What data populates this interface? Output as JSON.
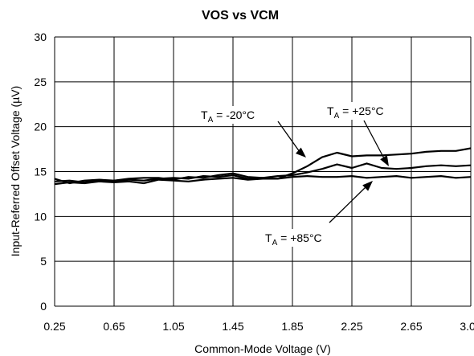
{
  "chart_data": {
    "type": "line",
    "title": "VOS vs VCM",
    "xlabel": "Common-Mode Voltage (V)",
    "ylabel": "Input-Referred Offset  Voltage (µV)",
    "xlim": [
      0.25,
      3.05
    ],
    "ylim": [
      0,
      30
    ],
    "x_ticks": [
      "0.25",
      "0.65",
      "1.05",
      "1.45",
      "1.85",
      "2.25",
      "2.65",
      "3.05"
    ],
    "y_ticks": [
      "0",
      "5",
      "10",
      "15",
      "20",
      "25",
      "30"
    ],
    "grid": true,
    "series": [
      {
        "name": "T_A = -20°C",
        "label_main": "T",
        "label_sub": "A",
        "label_rest": " = -20°C",
        "x": [
          0.25,
          0.35,
          0.45,
          0.55,
          0.65,
          0.75,
          0.85,
          0.95,
          1.05,
          1.15,
          1.25,
          1.35,
          1.45,
          1.55,
          1.65,
          1.75,
          1.85,
          1.95,
          2.05,
          2.15,
          2.25,
          2.35,
          2.45,
          2.55,
          2.65,
          2.75,
          2.85,
          2.95,
          3.05
        ],
        "values": [
          13.9,
          14.0,
          13.8,
          14.0,
          13.9,
          14.1,
          14.0,
          14.2,
          14.3,
          14.2,
          14.5,
          14.4,
          14.6,
          14.2,
          14.3,
          14.2,
          14.8,
          15.6,
          16.6,
          17.1,
          16.7,
          16.8,
          16.8,
          16.9,
          17.0,
          17.2,
          17.3,
          17.3,
          17.6
        ]
      },
      {
        "name": "T_A = +25°C",
        "label_main": "T",
        "label_sub": "A",
        "label_rest": " = +25°C",
        "x": [
          0.25,
          0.35,
          0.45,
          0.55,
          0.65,
          0.75,
          0.85,
          0.95,
          1.05,
          1.15,
          1.25,
          1.35,
          1.45,
          1.55,
          1.65,
          1.75,
          1.85,
          1.95,
          2.05,
          2.15,
          2.25,
          2.35,
          2.45,
          2.55,
          2.65,
          2.75,
          2.85,
          2.95,
          3.05
        ],
        "values": [
          14.2,
          13.7,
          14.0,
          14.1,
          14.0,
          14.2,
          14.3,
          14.3,
          14.1,
          14.4,
          14.3,
          14.6,
          14.8,
          14.4,
          14.3,
          14.5,
          14.6,
          14.9,
          15.3,
          15.8,
          15.4,
          15.9,
          15.4,
          15.3,
          15.4,
          15.6,
          15.7,
          15.6,
          15.7
        ]
      },
      {
        "name": "T_A = +85°C",
        "label_main": "T",
        "label_sub": "A",
        "label_rest": " = +85°C",
        "x": [
          0.25,
          0.35,
          0.45,
          0.55,
          0.65,
          0.75,
          0.85,
          0.95,
          1.05,
          1.15,
          1.25,
          1.35,
          1.45,
          1.55,
          1.65,
          1.75,
          1.85,
          1.95,
          2.05,
          2.15,
          2.25,
          2.35,
          2.45,
          2.55,
          2.65,
          2.75,
          2.85,
          2.95,
          3.05
        ],
        "values": [
          13.6,
          13.8,
          13.7,
          13.9,
          13.8,
          13.9,
          13.7,
          14.1,
          14.0,
          13.9,
          14.1,
          14.2,
          14.3,
          14.1,
          14.2,
          14.2,
          14.4,
          14.5,
          14.4,
          14.4,
          14.5,
          14.3,
          14.4,
          14.5,
          14.3,
          14.4,
          14.5,
          14.3,
          14.4
        ]
      }
    ]
  }
}
